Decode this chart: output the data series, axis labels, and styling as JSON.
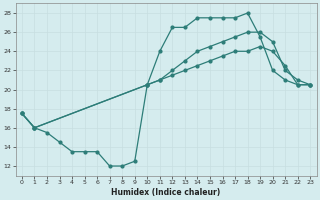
{
  "xlabel": "Humidex (Indice chaleur)",
  "bg_color": "#d5ecee",
  "line_color": "#2d7d78",
  "grid_color": "#c8dfe0",
  "xlim": [
    -0.5,
    23.5
  ],
  "ylim": [
    11.0,
    29.0
  ],
  "xticks": [
    0,
    1,
    2,
    3,
    4,
    5,
    6,
    7,
    8,
    9,
    10,
    11,
    12,
    13,
    14,
    15,
    16,
    17,
    18,
    19,
    20,
    21,
    22,
    23
  ],
  "yticks": [
    12,
    14,
    16,
    18,
    20,
    22,
    24,
    26,
    28
  ],
  "line1_x": [
    0,
    1,
    2,
    3,
    4,
    5,
    6,
    7,
    8,
    9,
    10,
    11,
    12,
    13,
    14,
    15,
    16,
    17,
    18,
    19,
    20,
    21,
    22,
    23
  ],
  "line1_y": [
    17.5,
    16.0,
    15.5,
    14.5,
    13.5,
    13.5,
    13.5,
    12.0,
    12.0,
    12.5,
    20.5,
    24.0,
    26.5,
    26.5,
    27.5,
    27.5,
    27.5,
    27.5,
    28.0,
    25.5,
    22.0,
    21.0,
    20.5,
    20.5
  ],
  "line2_x": [
    0,
    1,
    10,
    11,
    12,
    13,
    14,
    15,
    16,
    17,
    18,
    19,
    20,
    21,
    22,
    23
  ],
  "line2_y": [
    17.5,
    16.0,
    20.5,
    21.0,
    21.5,
    22.0,
    22.5,
    23.0,
    23.5,
    24.0,
    24.0,
    24.5,
    24.0,
    22.5,
    20.5,
    20.5
  ],
  "line3_x": [
    0,
    1,
    10,
    11,
    12,
    13,
    14,
    15,
    16,
    17,
    18,
    19,
    20,
    21,
    22,
    23
  ],
  "line3_y": [
    17.5,
    16.0,
    20.5,
    21.0,
    22.0,
    23.0,
    24.0,
    24.5,
    25.0,
    25.5,
    26.0,
    26.0,
    25.0,
    22.0,
    21.0,
    20.5
  ]
}
